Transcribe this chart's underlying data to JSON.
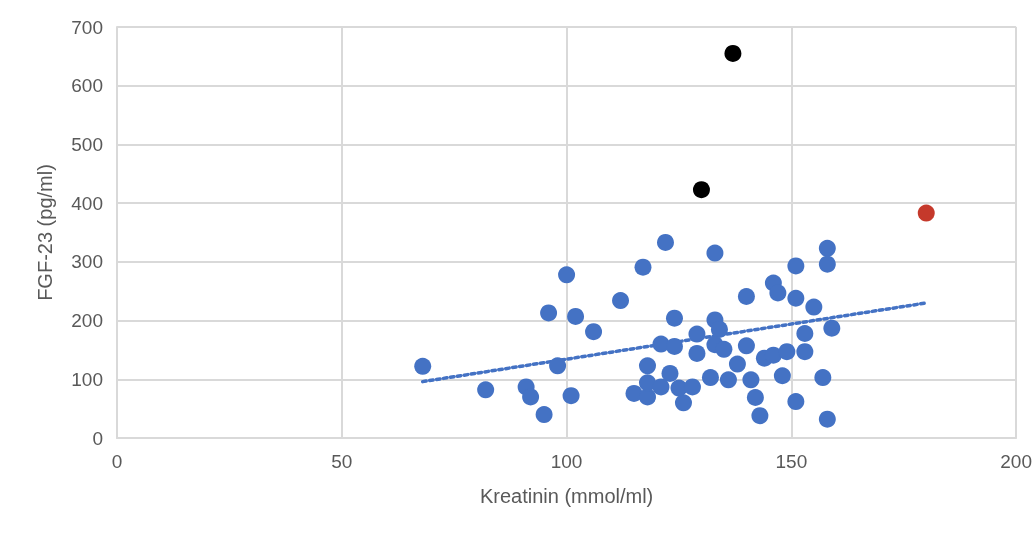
{
  "chart_data": {
    "type": "scatter",
    "xlabel": "Kreatinin (mmol/ml)",
    "ylabel": "FGF-23 (pg/ml)",
    "xlim": [
      0,
      200
    ],
    "xticks": [
      0,
      50,
      100,
      150,
      200
    ],
    "ylim": [
      0,
      700
    ],
    "yticks": [
      0,
      100,
      200,
      300,
      400,
      500,
      600,
      700
    ],
    "grid": true,
    "marker": "circle",
    "series": [
      {
        "color": "#4472c4",
        "x": [
          68,
          82,
          91,
          92,
          95,
          96,
          98,
          100,
          101,
          102,
          106,
          112,
          117,
          122,
          115,
          118,
          118,
          118,
          123,
          121,
          124,
          121,
          124,
          126,
          125,
          128,
          129,
          129,
          133,
          132,
          133,
          134,
          133,
          135,
          136,
          138,
          140,
          140,
          141,
          142,
          143,
          144,
          146,
          146,
          147,
          148,
          149,
          151,
          151,
          151,
          153,
          153,
          155,
          157,
          158,
          158,
          158,
          159
        ],
        "values": [
          122,
          82,
          87,
          70,
          40,
          213,
          123,
          278,
          72,
          207,
          181,
          234,
          291,
          333,
          76,
          70,
          123,
          94,
          110,
          87,
          204,
          160,
          156,
          60,
          85,
          87,
          177,
          144,
          315,
          103,
          201,
          185,
          159,
          151,
          99,
          126,
          241,
          157,
          99,
          69,
          38,
          136,
          141,
          264,
          247,
          106,
          147,
          293,
          238,
          62,
          178,
          147,
          223,
          103,
          323,
          296,
          32,
          187
        ]
      },
      {
        "color": "#000000",
        "x": [
          137,
          130
        ],
        "values": [
          655,
          423
        ]
      },
      {
        "color": "#c5392b",
        "x": [
          180
        ],
        "values": [
          383
        ]
      },
      {
        "type": "line",
        "color": "#4472c4",
        "line_style": "dotted",
        "marker": "none",
        "x": [
          68,
          180
        ],
        "values": [
          96,
          230
        ]
      }
    ]
  }
}
